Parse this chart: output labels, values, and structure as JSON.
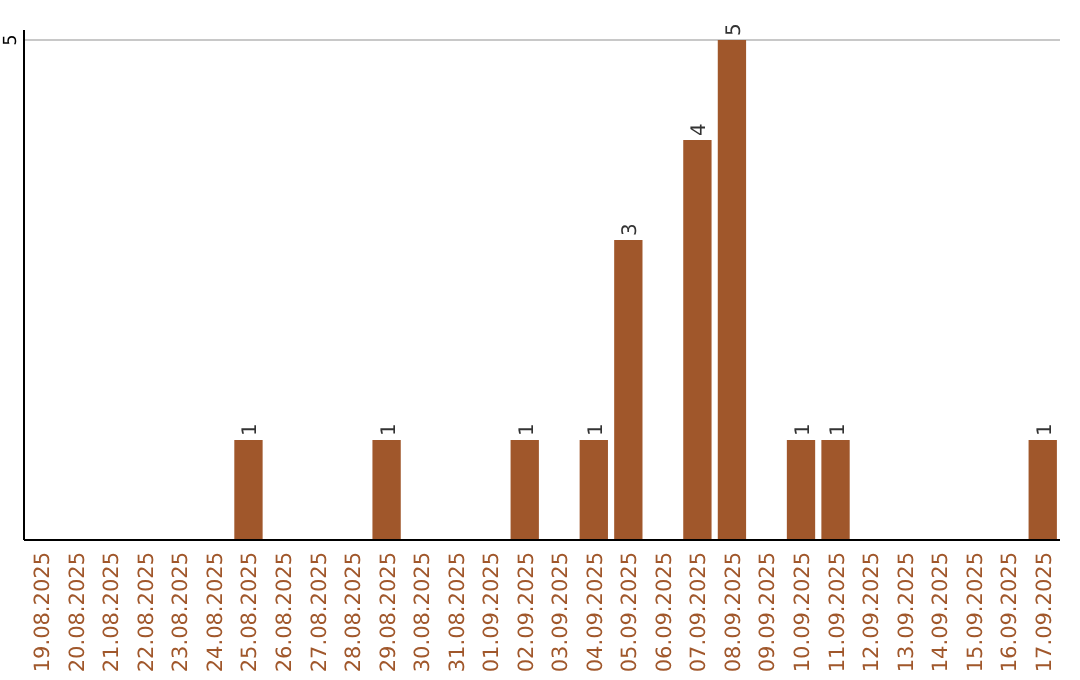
{
  "chart_data": {
    "type": "bar",
    "categories": [
      "19.08.2025",
      "20.08.2025",
      "21.08.2025",
      "22.08.2025",
      "23.08.2025",
      "24.08.2025",
      "25.08.2025",
      "26.08.2025",
      "27.08.2025",
      "28.08.2025",
      "29.08.2025",
      "30.08.2025",
      "31.08.2025",
      "01.09.2025",
      "02.09.2025",
      "03.09.2025",
      "04.09.2025",
      "05.09.2025",
      "06.09.2025",
      "07.09.2025",
      "08.09.2025",
      "09.09.2025",
      "10.09.2025",
      "11.09.2025",
      "12.09.2025",
      "13.09.2025",
      "14.09.2025",
      "15.09.2025",
      "16.09.2025",
      "17.09.2025"
    ],
    "values": [
      0,
      0,
      0,
      0,
      0,
      0,
      1,
      0,
      0,
      0,
      1,
      0,
      0,
      0,
      1,
      0,
      1,
      3,
      0,
      4,
      5,
      0,
      1,
      1,
      0,
      0,
      0,
      0,
      0,
      1
    ],
    "value_labels": [
      null,
      null,
      null,
      null,
      null,
      null,
      "1",
      null,
      null,
      null,
      "1",
      null,
      null,
      null,
      "1",
      null,
      "1",
      "3",
      null,
      "4",
      "5",
      null,
      "1",
      "1",
      null,
      null,
      null,
      null,
      null,
      "1"
    ],
    "color": "#a0572b",
    "ylim": [
      0,
      5.1
    ],
    "yticks": [
      5
    ],
    "grid": "y"
  }
}
